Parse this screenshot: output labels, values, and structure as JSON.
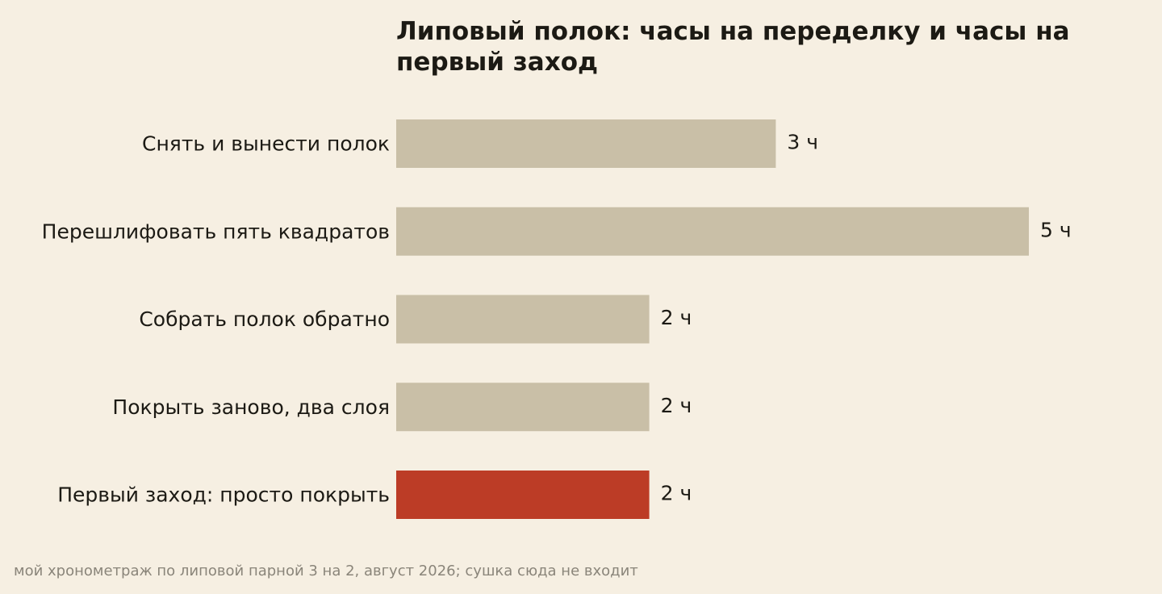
{
  "chart_data": {
    "type": "bar",
    "orientation": "horizontal",
    "title": "Липовый полок: часы на переделку и часы на первый заход",
    "categories": [
      "Снять и вынести полок",
      "Перешлифовать пять квадратов",
      "Собрать полок обратно",
      "Покрыть заново, два слоя",
      "Первый заход: просто покрыть"
    ],
    "values": [
      3,
      5,
      2,
      2,
      2
    ],
    "value_labels": [
      "3 ч",
      "5 ч",
      "2 ч",
      "2 ч",
      "2 ч"
    ],
    "xlim": [
      0,
      5
    ],
    "grid": false,
    "legend": "none",
    "colors": {
      "default": "#c9bfa7",
      "highlight": "#bc3c26",
      "text": "#1c1a14",
      "note": "#8a857a",
      "background": "#f6efe2"
    },
    "highlight_index": 4
  },
  "footnote": "мой хронометраж по липовой парной 3 на 2, август 2026; сушка сюда не входит"
}
